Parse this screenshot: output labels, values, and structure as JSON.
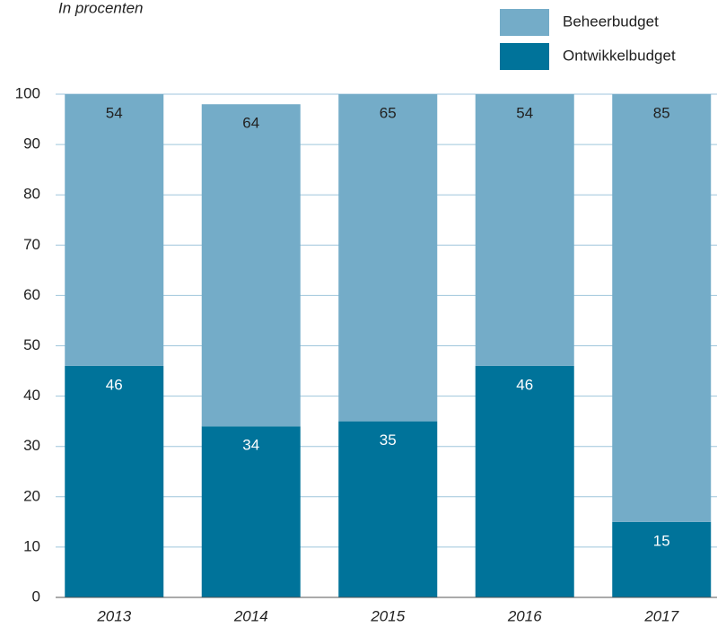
{
  "chart_data": {
    "type": "stacked_bar",
    "subtitle": "In procenten",
    "categories": [
      "2013",
      "2014",
      "2015",
      "2016",
      "2017"
    ],
    "series": [
      {
        "name": "Ontwikkelbudget",
        "color": "#00739a",
        "values": [
          46,
          34,
          35,
          46,
          15
        ]
      },
      {
        "name": "Beheerbudget",
        "color": "#74acc8",
        "values": [
          54,
          64,
          65,
          54,
          85
        ]
      }
    ],
    "ylim": [
      0,
      100
    ],
    "yticks": [
      0,
      10,
      20,
      30,
      40,
      50,
      60,
      70,
      80,
      90,
      100
    ],
    "grid": true
  }
}
